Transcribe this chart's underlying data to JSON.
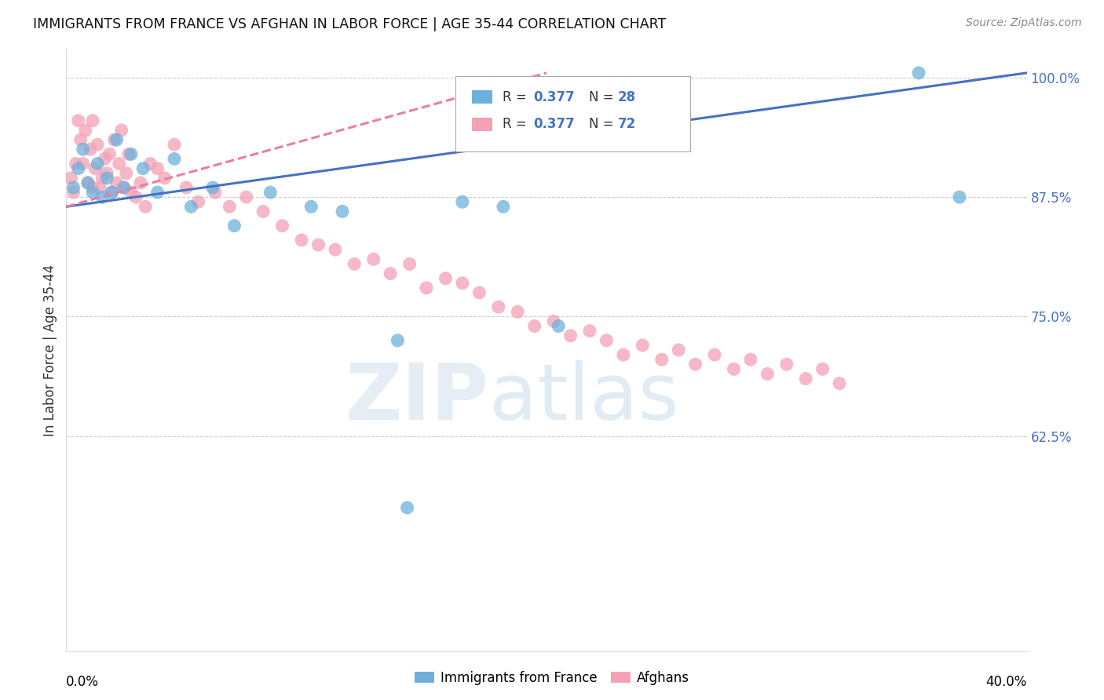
{
  "title": "IMMIGRANTS FROM FRANCE VS AFGHAN IN LABOR FORCE | AGE 35-44 CORRELATION CHART",
  "source": "Source: ZipAtlas.com",
  "ylabel": "In Labor Force | Age 35-44",
  "xlim": [
    0.0,
    40.0
  ],
  "ylim": [
    40.0,
    103.0
  ],
  "france_R": 0.377,
  "france_N": 28,
  "afghan_R": 0.377,
  "afghan_N": 72,
  "france_color": "#6eb0dc",
  "afghan_color": "#f4a0b5",
  "france_line_color": "#4472c4",
  "afghan_line_color": "#e87fa0",
  "france_scatter_x": [
    0.3,
    0.5,
    0.7,
    0.9,
    1.1,
    1.3,
    1.5,
    1.7,
    1.9,
    2.1,
    2.4,
    2.7,
    3.2,
    3.8,
    4.5,
    5.2,
    6.1,
    7.0,
    8.5,
    10.2,
    11.5,
    13.8,
    14.2,
    16.5,
    18.2,
    20.5,
    35.5,
    37.2
  ],
  "france_scatter_y": [
    88.5,
    90.5,
    92.5,
    89.0,
    88.0,
    91.0,
    87.5,
    89.5,
    88.0,
    93.5,
    88.5,
    92.0,
    90.5,
    88.0,
    91.5,
    86.5,
    88.5,
    84.5,
    88.0,
    86.5,
    86.0,
    72.5,
    55.0,
    87.0,
    86.5,
    74.0,
    100.5,
    87.5
  ],
  "afghan_scatter_x": [
    0.2,
    0.3,
    0.4,
    0.5,
    0.6,
    0.7,
    0.8,
    0.9,
    1.0,
    1.1,
    1.1,
    1.2,
    1.3,
    1.4,
    1.5,
    1.6,
    1.7,
    1.8,
    1.9,
    2.0,
    2.1,
    2.2,
    2.3,
    2.4,
    2.5,
    2.6,
    2.7,
    2.9,
    3.1,
    3.3,
    3.5,
    3.8,
    4.1,
    4.5,
    5.0,
    5.5,
    6.2,
    6.8,
    7.5,
    8.2,
    9.0,
    9.8,
    10.5,
    11.2,
    12.0,
    12.8,
    13.5,
    14.3,
    15.0,
    15.8,
    16.5,
    17.2,
    18.0,
    18.8,
    19.5,
    20.3,
    21.0,
    21.8,
    22.5,
    23.2,
    24.0,
    24.8,
    25.5,
    26.2,
    27.0,
    27.8,
    28.5,
    29.2,
    30.0,
    30.8,
    31.5,
    32.2
  ],
  "afghan_scatter_y": [
    89.5,
    88.0,
    91.0,
    95.5,
    93.5,
    91.0,
    94.5,
    89.0,
    92.5,
    88.5,
    95.5,
    90.5,
    93.0,
    88.5,
    89.5,
    91.5,
    90.0,
    92.0,
    88.0,
    93.5,
    89.0,
    91.0,
    94.5,
    88.5,
    90.0,
    92.0,
    88.0,
    87.5,
    89.0,
    86.5,
    91.0,
    90.5,
    89.5,
    93.0,
    88.5,
    87.0,
    88.0,
    86.5,
    87.5,
    86.0,
    84.5,
    83.0,
    82.5,
    82.0,
    80.5,
    81.0,
    79.5,
    80.5,
    78.0,
    79.0,
    78.5,
    77.5,
    76.0,
    75.5,
    74.0,
    74.5,
    73.0,
    73.5,
    72.5,
    71.0,
    72.0,
    70.5,
    71.5,
    70.0,
    71.0,
    69.5,
    70.5,
    69.0,
    70.0,
    68.5,
    69.5,
    68.0
  ],
  "grid_color": "#cccccc",
  "background_color": "#ffffff",
  "ytick_labels": [
    "100.0%",
    "87.5%",
    "75.0%",
    "62.5%"
  ],
  "ytick_values": [
    100.0,
    87.5,
    75.0,
    62.5
  ]
}
